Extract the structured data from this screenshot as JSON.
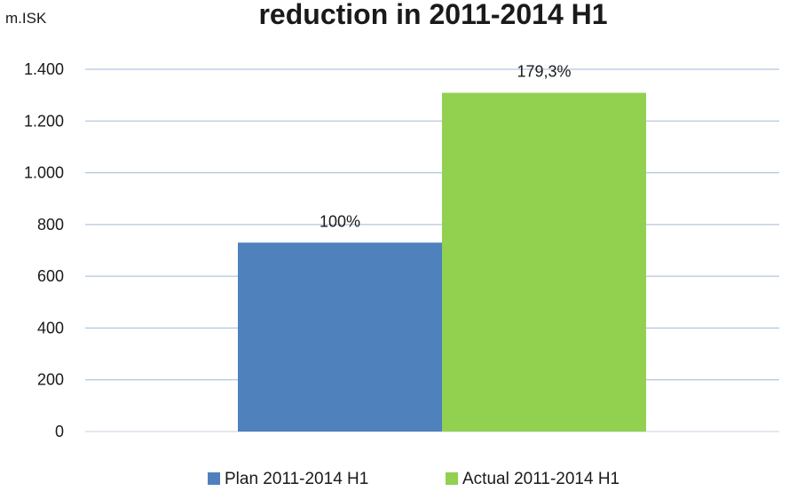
{
  "chart_data": {
    "type": "bar",
    "title": "reduction in 2011-2014 H1",
    "ylabel": "m.ISK",
    "xlabel": "",
    "ylim": [
      0,
      1400
    ],
    "ytick_labels": [
      "0",
      "200",
      "400",
      "600",
      "800",
      "1.000",
      "1.200",
      "1.400"
    ],
    "ytick_values": [
      0,
      200,
      400,
      600,
      800,
      1000,
      1200,
      1400
    ],
    "grid": true,
    "legend_position": "bottom",
    "series": [
      {
        "name": "Plan 2011-2014 H1",
        "values": [
          730
        ],
        "data_label": "100%",
        "color": "#4f81bd"
      },
      {
        "name": "Actual 2011-2014 H1",
        "values": [
          1309
        ],
        "data_label": "179,3%",
        "color": "#92d050"
      }
    ],
    "colors": {
      "gridline": "#a3b9d8",
      "text": "#1a1a1a"
    }
  }
}
